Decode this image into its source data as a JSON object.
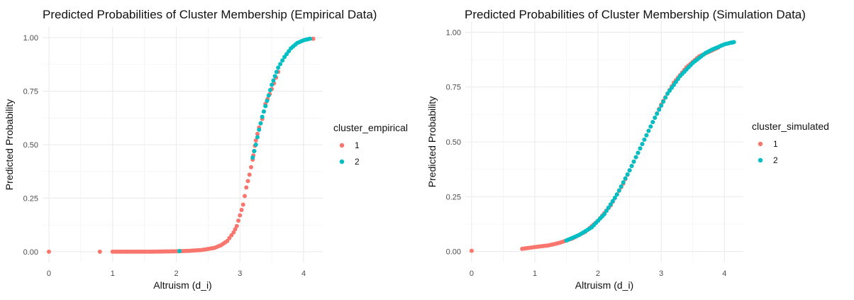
{
  "chart_data": [
    {
      "type": "scatter",
      "title": "Predicted Probabilities of Cluster Membership (Empirical Data)",
      "xlabel": "Altruism (d_i)",
      "ylabel": "Predicted Probability",
      "xlim": [
        -0.1,
        4.3
      ],
      "ylim": [
        -0.05,
        1.05
      ],
      "x_ticks": [
        0,
        1,
        2,
        3,
        4
      ],
      "y_ticks": [
        0,
        0.25,
        0.5,
        0.75,
        1
      ],
      "x_tick_labels": [
        "0",
        "1",
        "2",
        "3",
        "4"
      ],
      "y_tick_labels": [
        "0.00",
        "0.25",
        "0.50",
        "0.75",
        "1.00"
      ],
      "grid": true,
      "legend": {
        "title": "cluster_empirical",
        "placement": "right",
        "entries": [
          "1",
          "2"
        ]
      },
      "series": [
        {
          "name": "1",
          "color": "#F8766D",
          "x": [
            0,
            0.8,
            1.0,
            1.2,
            1.4,
            1.6,
            1.8,
            2.0,
            2.2,
            2.4,
            2.6,
            2.7,
            2.8,
            2.9,
            2.95,
            3.0,
            3.05,
            3.1,
            3.15,
            3.2,
            3.22,
            3.25,
            3.3,
            3.35,
            3.4,
            3.5,
            3.6,
            4.15
          ],
          "y": [
            0.0,
            0.0,
            0.0,
            0.0,
            0.0,
            0.0,
            0.001,
            0.002,
            0.004,
            0.008,
            0.018,
            0.03,
            0.05,
            0.09,
            0.12,
            0.17,
            0.22,
            0.3,
            0.36,
            0.43,
            0.47,
            0.52,
            0.58,
            0.62,
            0.69,
            0.76,
            0.84,
            0.995
          ]
        },
        {
          "name": "2",
          "color": "#00BFC4",
          "x": [
            2.05,
            3.2,
            3.25,
            3.3,
            3.35,
            3.4,
            3.45,
            3.5,
            3.55,
            3.6,
            3.7,
            3.8,
            3.9,
            4.0,
            4.1
          ],
          "y": [
            0.003,
            0.44,
            0.5,
            0.57,
            0.63,
            0.68,
            0.73,
            0.78,
            0.82,
            0.86,
            0.91,
            0.95,
            0.975,
            0.988,
            0.995
          ]
        }
      ]
    },
    {
      "type": "scatter",
      "title": "Predicted Probabilities of Cluster Membership (Simulation Data)",
      "xlabel": "Altruism (d_i)",
      "ylabel": "Predicted Probability",
      "xlim": [
        -0.1,
        4.3
      ],
      "ylim": [
        -0.05,
        1.05
      ],
      "x_ticks": [
        0,
        1,
        2,
        3,
        4
      ],
      "y_ticks": [
        0,
        0.25,
        0.5,
        0.75,
        1
      ],
      "x_tick_labels": [
        "0",
        "1",
        "2",
        "3",
        "4"
      ],
      "y_tick_labels": [
        "0.00",
        "0.25",
        "0.50",
        "0.75",
        "1.00"
      ],
      "grid": true,
      "legend": {
        "title": "cluster_simulated",
        "placement": "right",
        "entries": [
          "1",
          "2"
        ]
      },
      "series": [
        {
          "name": "1",
          "color": "#F8766D",
          "x": [
            0,
            0.8,
            1.0,
            1.2,
            1.3,
            1.4,
            1.6,
            1.8,
            2.0,
            2.2,
            2.4,
            2.6,
            2.8,
            3.0,
            3.2,
            3.4,
            3.6,
            3.9
          ],
          "y": [
            0.003,
            0.012,
            0.02,
            0.027,
            0.033,
            0.04,
            0.06,
            0.09,
            0.14,
            0.21,
            0.31,
            0.43,
            0.55,
            0.67,
            0.77,
            0.84,
            0.89,
            0.93
          ]
        },
        {
          "name": "2",
          "color": "#00BFC4",
          "x": [
            1.5,
            1.7,
            1.9,
            2.1,
            2.3,
            2.5,
            2.7,
            2.9,
            3.1,
            3.3,
            3.5,
            3.7,
            3.8,
            4.0,
            4.1,
            4.15
          ],
          "y": [
            0.05,
            0.075,
            0.11,
            0.17,
            0.26,
            0.37,
            0.49,
            0.61,
            0.72,
            0.8,
            0.86,
            0.905,
            0.92,
            0.945,
            0.952,
            0.955
          ]
        }
      ]
    }
  ]
}
